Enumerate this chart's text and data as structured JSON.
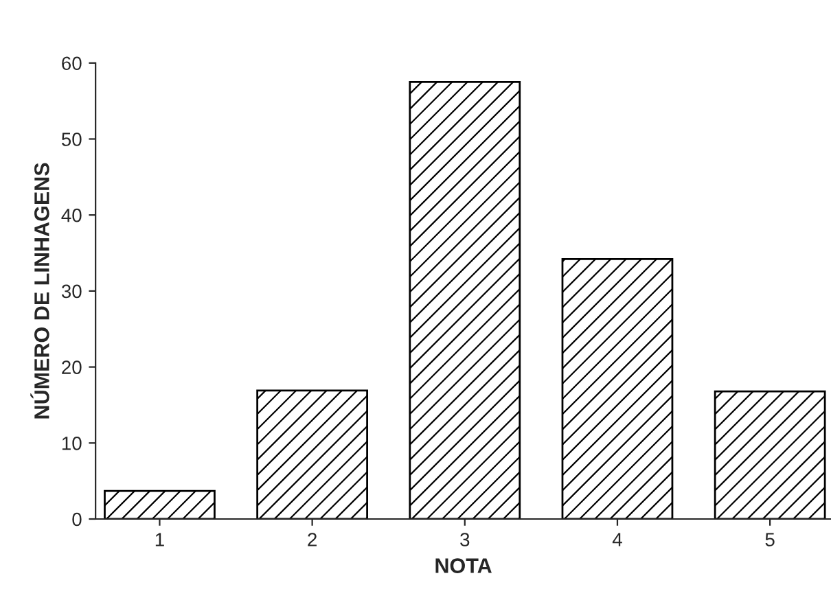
{
  "chart_data": {
    "type": "bar",
    "xlabel": "NOTA",
    "ylabel": "NÚMERO DE LINHAGENS",
    "categories": [
      "1",
      "2",
      "3",
      "4",
      "5"
    ],
    "values": [
      3.7,
      16.9,
      57.5,
      34.2,
      16.8
    ],
    "color": "#000000",
    "ylim": [
      0,
      60
    ],
    "yticks": [
      0,
      10,
      20,
      30,
      40,
      50,
      60
    ],
    "grid": false
  }
}
